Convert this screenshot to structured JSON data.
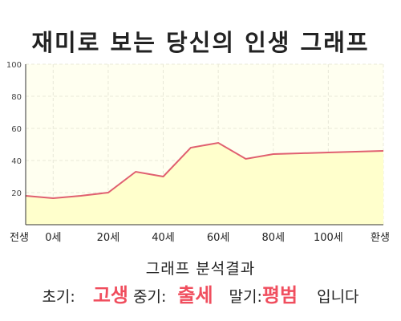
{
  "title": "재미로 보는 당신의 인생 그래프",
  "chart_data": {
    "type": "area",
    "x_labels": [
      "전생",
      "0세",
      "20세",
      "40세",
      "60세",
      "80세",
      "100세",
      "환생"
    ],
    "y_ticks": [
      20,
      40,
      60,
      80,
      100
    ],
    "ylim": [
      0,
      100
    ],
    "grid": true,
    "series": [
      {
        "points": [
          {
            "x": "전생",
            "y": 18
          },
          {
            "x": "0세",
            "y": 16.5
          },
          {
            "x": "10세",
            "y": 18
          },
          {
            "x": "20세",
            "y": 20
          },
          {
            "x": "30세",
            "y": 33
          },
          {
            "x": "40세",
            "y": 30
          },
          {
            "x": "50세",
            "y": 48
          },
          {
            "x": "60세",
            "y": 51
          },
          {
            "x": "70세",
            "y": 41
          },
          {
            "x": "80세",
            "y": 44
          },
          {
            "x": "90세",
            "y": 44.5
          },
          {
            "x": "100세",
            "y": 45
          },
          {
            "x": "110세",
            "y": 45.5
          },
          {
            "x": "환생",
            "y": 46
          }
        ]
      }
    ],
    "colors": {
      "line": "#e06070",
      "fill": "#ffffcc",
      "plot_bg": "#fffff0",
      "grid": "#e8e8d8"
    }
  },
  "result": {
    "title": "그래프 분석결과",
    "early_label": "초기:",
    "early_value": "고생",
    "middle_label": "중기:",
    "middle_value": "출세",
    "late_label": "말기:",
    "late_value": "평범",
    "ending": "입니다"
  }
}
